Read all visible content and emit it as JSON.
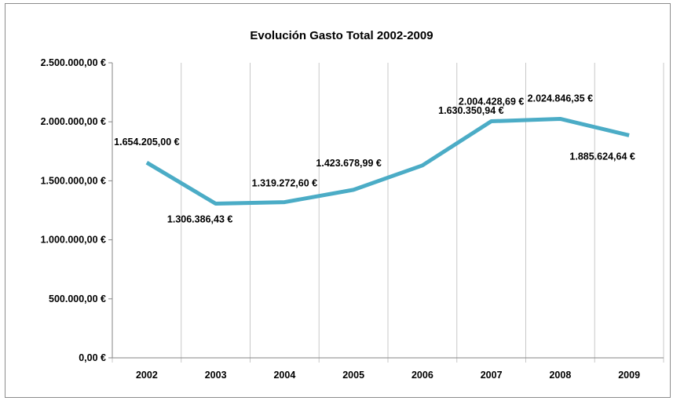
{
  "chart_data": {
    "type": "line",
    "title": "Evolución Gasto Total 2002-2009",
    "categories": [
      "2002",
      "2003",
      "2004",
      "2005",
      "2006",
      "2007",
      "2008",
      "2009"
    ],
    "series": [
      {
        "values": [
          1654205.0,
          1306386.43,
          1319272.6,
          1423678.99,
          1630350.94,
          2004428.69,
          2024846.35,
          1885624.64
        ],
        "data_labels": [
          "1.654.205,00 €",
          "1.306.386,43 €",
          "1.319.272,60 €",
          "1.423.678,99 €",
          "1.630.350,94 €",
          "2.004.428,69 €",
          "2.024.846,35 €",
          "1.885.624,64 €"
        ],
        "color": "#4bacc6"
      }
    ],
    "y_ticks": [
      0,
      500000,
      1000000,
      1500000,
      2000000,
      2500000
    ],
    "y_tick_labels": [
      "0,00 €",
      "500.000,00 €",
      "1.000.000,00 €",
      "1.500.000,00 €",
      "2.000.000,00 €",
      "2.500.000,00 €"
    ],
    "ylim": [
      0,
      2500000
    ],
    "gridlines": "vertical",
    "legend": "none"
  }
}
